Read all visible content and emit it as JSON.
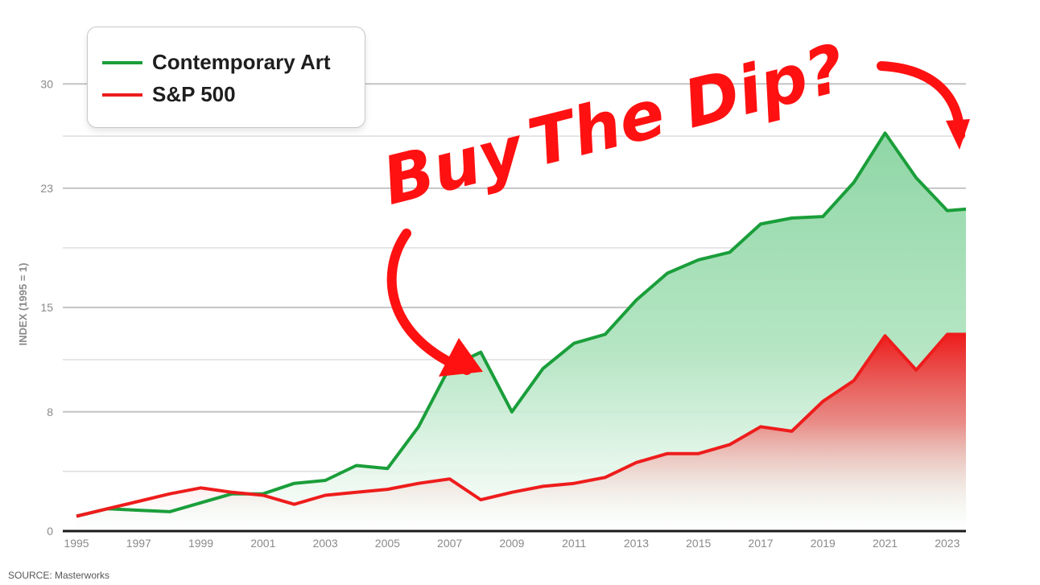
{
  "chart_data": {
    "type": "area",
    "title": "",
    "xlabel": "",
    "ylabel": "INDEX (1995 = 1)",
    "x_ticks": [
      "1995",
      "1997",
      "1999",
      "2001",
      "2003",
      "2005",
      "2007",
      "2009",
      "2011",
      "2013",
      "2015",
      "2017",
      "2019",
      "2021",
      "2023"
    ],
    "y_ticks": [
      "0",
      "8",
      "15",
      "23",
      "30"
    ],
    "ylim": [
      0,
      30.5
    ],
    "xlim": [
      1995,
      2023.6
    ],
    "grid": "horizontal",
    "legend_position": "top-left",
    "x": [
      1995,
      1996,
      1997,
      1998,
      1999,
      2000,
      2001,
      2002,
      2003,
      2004,
      2005,
      2006,
      2007,
      2008,
      2009,
      2010,
      2011,
      2012,
      2013,
      2014,
      2015,
      2016,
      2017,
      2018,
      2019,
      2020,
      2021,
      2022,
      2023,
      2023.6
    ],
    "series": [
      {
        "name": "Contemporary Art",
        "color": "#1a9e3a",
        "fill": "#7fd19a",
        "values": [
          1.0,
          1.5,
          1.4,
          1.3,
          1.9,
          2.5,
          2.5,
          3.2,
          3.4,
          4.4,
          4.2,
          7.0,
          11.0,
          12.0,
          8.0,
          10.9,
          12.6,
          13.2,
          15.5,
          17.3,
          18.2,
          18.7,
          20.6,
          21.0,
          21.1,
          23.4,
          26.7,
          23.7,
          21.5,
          21.6
        ],
        "label_display": "Contemporary Art"
      },
      {
        "name": "S&P 500",
        "color": "#ee1c1c",
        "fill": "#ee1c1c",
        "values": [
          1.0,
          1.5,
          2.0,
          2.5,
          2.9,
          2.6,
          2.4,
          1.8,
          2.4,
          2.6,
          2.8,
          3.2,
          3.5,
          2.1,
          2.6,
          3.0,
          3.2,
          3.6,
          4.6,
          5.2,
          5.2,
          5.8,
          7.0,
          6.7,
          8.7,
          10.1,
          13.1,
          10.8,
          13.2,
          13.2
        ],
        "label_display": "S&P 500"
      }
    ]
  },
  "legend": {
    "items": [
      {
        "label": "Contemporary Art",
        "color": "#1a9e3a"
      },
      {
        "label": "S&P 500",
        "color": "#ee1c1c"
      }
    ]
  },
  "annotation": {
    "text": "Buy The Dip?",
    "word1": "Buy",
    "word2": "The Dip?",
    "color": "#ff1111"
  },
  "source": "SOURCE: Masterworks"
}
